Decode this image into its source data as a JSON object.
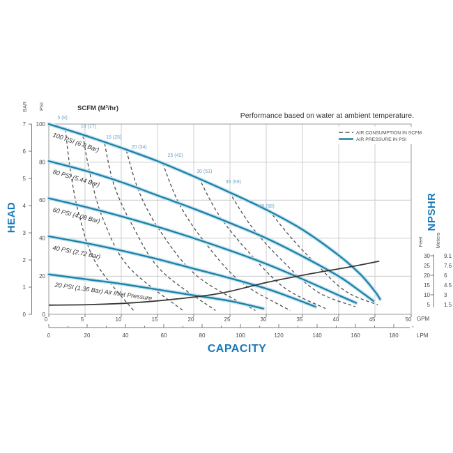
{
  "chart_data": {
    "type": "line",
    "title": "Performance based on water at ambient temperature.",
    "header": "SCFM (M³/hr)",
    "legend": [
      {
        "label": "AIR CONSUMPTION IN SCFM",
        "style": "dashed"
      },
      {
        "label": "AIR PRESSURE IN PSI",
        "style": "solid"
      }
    ],
    "colors": {
      "pressure": "#1f7fa6",
      "pressure_halo": "#c5e5f2",
      "consumption": "#4f4f4f",
      "npshr_curve": "#383838",
      "axis_blue": "#1878b8",
      "consumption_label": "#6ba4c2",
      "grid": "#cccccc",
      "border": "#aaaaaa",
      "tick": "#777777"
    },
    "axes": {
      "x_title": "CAPACITY",
      "y_title": "HEAD",
      "right_title": "NPSHR",
      "x_gpm": {
        "unit": "GPM",
        "ticks": [
          0,
          5,
          10,
          15,
          20,
          25,
          30,
          35,
          40,
          45,
          50
        ],
        "range": [
          0,
          50
        ]
      },
      "x_lpm": {
        "unit": "LPM",
        "ticks": [
          0,
          20,
          40,
          60,
          80,
          100,
          120,
          140,
          160,
          180
        ]
      },
      "y_bar": {
        "label": "BAR",
        "ticks": [
          0,
          1,
          2,
          3,
          4,
          5,
          6,
          7
        ]
      },
      "y_psi": {
        "label": "PSI",
        "ticks": [
          0,
          20,
          40,
          60,
          80,
          100
        ],
        "range": [
          0,
          100
        ]
      },
      "npshr_scale": {
        "feet_label": "Feet",
        "meters_label": "Meters",
        "feet": [
          30,
          25,
          20,
          15,
          10,
          5
        ],
        "meters": [
          "9.1",
          "7.6",
          "6",
          "4.5",
          "3",
          "1.5"
        ]
      }
    },
    "pressure_curves": [
      {
        "label": "100 PSI (6.8 Bar)",
        "label_gpm": 0.5,
        "label_psi": 93.5,
        "label_angle": 19,
        "points": [
          [
            0,
            100
          ],
          [
            5,
            94
          ],
          [
            10,
            87.5
          ],
          [
            15,
            80.5
          ],
          [
            20,
            72.5
          ],
          [
            25,
            64
          ],
          [
            30,
            55
          ],
          [
            35,
            44.5
          ],
          [
            40,
            31
          ],
          [
            43,
            21
          ],
          [
            45,
            12
          ],
          [
            45.7,
            8
          ]
        ]
      },
      {
        "label": "80 PSI (5.44 Bar)",
        "label_gpm": 0.5,
        "label_psi": 74,
        "label_angle": 16,
        "points": [
          [
            0,
            80.5
          ],
          [
            5,
            75.5
          ],
          [
            10,
            69.5
          ],
          [
            15,
            62.5
          ],
          [
            20,
            55.5
          ],
          [
            25,
            48
          ],
          [
            30,
            40
          ],
          [
            35,
            30.5
          ],
          [
            40,
            20
          ],
          [
            43,
            12
          ],
          [
            44.8,
            7
          ]
        ]
      },
      {
        "label": "60 PSI (4.08 Bar)",
        "label_gpm": 0.5,
        "label_psi": 54,
        "label_angle": 14,
        "points": [
          [
            0,
            61
          ],
          [
            5,
            56.5
          ],
          [
            10,
            51.5
          ],
          [
            15,
            46
          ],
          [
            20,
            40
          ],
          [
            25,
            33.5
          ],
          [
            30,
            26.5
          ],
          [
            35,
            18.5
          ],
          [
            40,
            10
          ],
          [
            42.4,
            6
          ]
        ]
      },
      {
        "label": "40 PSI (2.72 Bar)",
        "label_gpm": 0.5,
        "label_psi": 34,
        "label_angle": 11,
        "points": [
          [
            0,
            41
          ],
          [
            5,
            37.5
          ],
          [
            10,
            33.5
          ],
          [
            15,
            29
          ],
          [
            20,
            24
          ],
          [
            25,
            19
          ],
          [
            30,
            13.5
          ],
          [
            33,
            9.5
          ],
          [
            36.8,
            4
          ]
        ]
      },
      {
        "label": "20 PSI (1.36 Bar) Air Inlet Pressure",
        "label_gpm": 0.8,
        "label_psi": 14.5,
        "label_angle": 8,
        "points": [
          [
            0,
            21
          ],
          [
            5,
            18.5
          ],
          [
            10,
            16
          ],
          [
            15,
            13
          ],
          [
            20,
            10
          ],
          [
            25,
            7
          ],
          [
            29.6,
            3
          ]
        ]
      }
    ],
    "consumption_curves": [
      {
        "label": "5 (8)",
        "label_gpm": 1.2,
        "label_psi": 102.5,
        "points": [
          [
            2.3,
            97.2
          ],
          [
            3,
            75
          ],
          [
            4.2,
            52
          ],
          [
            6.5,
            27
          ],
          [
            11.8,
            1.5
          ]
        ]
      },
      {
        "label": "10 (17)",
        "label_gpm": 4.4,
        "label_psi": 98,
        "points": [
          [
            4.7,
            93.8
          ],
          [
            5.8,
            72
          ],
          [
            7.5,
            50
          ],
          [
            11,
            25
          ],
          [
            18.5,
            2
          ]
        ]
      },
      {
        "label": "15 (25)",
        "label_gpm": 7.9,
        "label_psi": 92.3,
        "points": [
          [
            7.7,
            89.8
          ],
          [
            9,
            68
          ],
          [
            11.5,
            47
          ],
          [
            15.5,
            23
          ],
          [
            23,
            2
          ]
        ]
      },
      {
        "label": "20 (34)",
        "label_gpm": 11.4,
        "label_psi": 87.2,
        "points": [
          [
            10.7,
            86
          ],
          [
            12.5,
            64
          ],
          [
            15.5,
            43
          ],
          [
            20.5,
            20
          ],
          [
            28.5,
            2
          ]
        ]
      },
      {
        "label": "25 (42)",
        "label_gpm": 16.4,
        "label_psi": 82.8,
        "points": [
          [
            15.7,
            79.5
          ],
          [
            18,
            58
          ],
          [
            21.5,
            38
          ],
          [
            26.5,
            17
          ],
          [
            33.3,
            2
          ]
        ]
      },
      {
        "label": "30 (51)",
        "label_gpm": 20.4,
        "label_psi": 74.4,
        "points": [
          [
            20.7,
            71.8
          ],
          [
            23.5,
            52
          ],
          [
            27.5,
            33
          ],
          [
            32.5,
            14
          ],
          [
            38.2,
            3
          ]
        ]
      },
      {
        "label": "35 (59)",
        "label_gpm": 24.4,
        "label_psi": 68.9,
        "points": [
          [
            24.9,
            64.2
          ],
          [
            28,
            46
          ],
          [
            32,
            29
          ],
          [
            37,
            12
          ],
          [
            42.3,
            4
          ]
        ]
      },
      {
        "label": "40 (68)",
        "label_gpm": 29.0,
        "label_psi": 56.0,
        "points": [
          [
            30.4,
            54.5
          ],
          [
            33.5,
            40
          ],
          [
            37,
            26
          ],
          [
            41,
            12
          ],
          [
            45.4,
            5
          ]
        ]
      }
    ],
    "npshr_curve": {
      "points_gpm_feet": [
        [
          0,
          4.7
        ],
        [
          6,
          5
        ],
        [
          12,
          6
        ],
        [
          18,
          8
        ],
        [
          24,
          11
        ],
        [
          30,
          16.3
        ],
        [
          36,
          20.7
        ],
        [
          42,
          24.6
        ],
        [
          45.6,
          27.2
        ]
      ]
    }
  }
}
